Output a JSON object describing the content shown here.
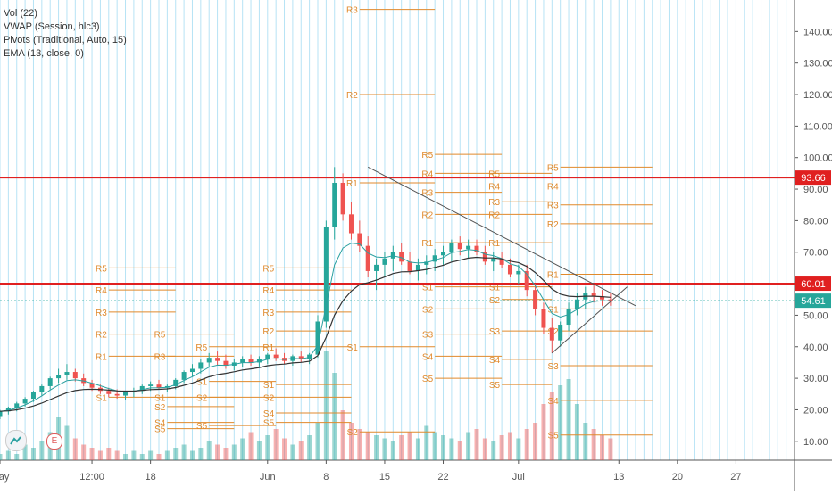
{
  "legend": [
    "Vol (22)",
    "VWAP (Session, hlc3)",
    "Pivots (Traditional, Auto, 15)",
    "EMA (13, close, 0)"
  ],
  "chart_data": {
    "type": "candlestick",
    "x_tick_labels": [
      "May",
      "12:00",
      "18",
      "Jun",
      "8",
      "15",
      "22",
      "Jul",
      "13",
      "20",
      "27"
    ],
    "x_ticks": [
      {
        "label": "May",
        "day": 0
      },
      {
        "label": "12:00",
        "day": 11
      },
      {
        "label": "18",
        "day": 18
      },
      {
        "label": "Jun",
        "day": 32
      },
      {
        "label": "8",
        "day": 39
      },
      {
        "label": "15",
        "day": 46
      },
      {
        "label": "22",
        "day": 53
      },
      {
        "label": "Jul",
        "day": 62
      },
      {
        "label": "13",
        "day": 74
      },
      {
        "label": "20",
        "day": 81
      },
      {
        "label": "27",
        "day": 88
      }
    ],
    "y_ticks": [
      10,
      20,
      30,
      40,
      50,
      60,
      70,
      80,
      90,
      100,
      110,
      120,
      130,
      140
    ],
    "ylim": [
      4,
      150
    ],
    "xlim": [
      0,
      95
    ],
    "horizontal_lines": [
      {
        "value": 93.66,
        "label": "93.66",
        "color": "#e02020"
      },
      {
        "value": 60.01,
        "label": "60.01",
        "color": "#e02020"
      }
    ],
    "last_price": {
      "value": 54.61,
      "label": "54.61",
      "color": "#26a69a"
    },
    "trendlines": [
      {
        "from": [
          44,
          97
        ],
        "to": [
          76,
          53
        ],
        "color": "#555555"
      },
      {
        "from": [
          66,
          38
        ],
        "to": [
          75,
          59
        ],
        "color": "#555555"
      }
    ],
    "candles": [
      [
        0,
        18,
        20,
        17,
        19.5
      ],
      [
        1,
        19.5,
        21,
        18.5,
        20.5
      ],
      [
        2,
        20.5,
        22.5,
        19.5,
        22
      ],
      [
        3,
        22,
        24,
        21,
        23.5
      ],
      [
        4,
        23.5,
        26,
        22.5,
        25.5
      ],
      [
        5,
        25.5,
        28,
        24.5,
        27.5
      ],
      [
        6,
        27.5,
        30.5,
        26.5,
        30
      ],
      [
        7,
        30,
        33,
        28.5,
        31
      ],
      [
        8,
        31,
        34.5,
        29.5,
        32
      ],
      [
        9,
        32,
        33,
        29,
        30
      ],
      [
        10,
        30,
        31.5,
        27.5,
        28.5
      ],
      [
        11,
        28.5,
        29.5,
        26,
        27
      ],
      [
        12,
        27,
        28,
        25,
        26
      ],
      [
        13,
        26,
        27,
        24,
        25
      ],
      [
        14,
        25,
        26.5,
        23.5,
        24.5
      ],
      [
        15,
        24.5,
        26,
        23,
        25.5
      ],
      [
        16,
        25.5,
        27,
        24,
        26
      ],
      [
        17,
        26,
        28,
        25,
        27.5
      ],
      [
        18,
        27.5,
        29,
        26,
        28
      ],
      [
        19,
        28,
        29.5,
        26.5,
        27
      ],
      [
        20,
        27,
        28,
        25.5,
        27.5
      ],
      [
        21,
        27.5,
        30,
        26.5,
        29.5
      ],
      [
        22,
        29.5,
        32.5,
        28.5,
        32
      ],
      [
        23,
        32,
        34.5,
        30.5,
        33
      ],
      [
        24,
        33,
        36,
        31.5,
        35
      ],
      [
        25,
        35,
        38,
        33.5,
        36.5
      ],
      [
        26,
        36.5,
        38.5,
        34,
        35.5
      ],
      [
        27,
        35.5,
        37.5,
        33,
        34
      ],
      [
        28,
        34,
        36,
        32.5,
        35
      ],
      [
        29,
        35,
        37,
        33.5,
        36
      ],
      [
        30,
        36,
        37.5,
        34,
        35
      ],
      [
        31,
        35,
        37,
        33.5,
        36
      ],
      [
        32,
        36,
        38,
        34.5,
        37.5
      ],
      [
        33,
        37.5,
        39.5,
        35.5,
        36.5
      ],
      [
        34,
        36.5,
        38,
        34.5,
        35.5
      ],
      [
        35,
        35.5,
        37.5,
        34,
        37
      ],
      [
        36,
        37,
        38.5,
        35,
        36
      ],
      [
        37,
        36,
        38,
        34.5,
        37.5
      ],
      [
        38,
        37.5,
        50,
        36.5,
        48
      ],
      [
        39,
        48,
        80,
        46,
        78
      ],
      [
        40,
        78,
        97,
        74,
        92
      ],
      [
        41,
        92,
        95,
        80,
        82
      ],
      [
        42,
        82,
        86,
        74,
        76
      ],
      [
        43,
        76,
        80,
        70,
        72
      ],
      [
        44,
        72,
        75,
        62,
        64
      ],
      [
        45,
        64,
        68,
        58,
        66
      ],
      [
        46,
        66,
        70,
        62,
        68
      ],
      [
        47,
        68,
        72,
        64,
        70
      ],
      [
        48,
        70,
        73,
        66,
        67
      ],
      [
        49,
        67,
        70,
        63,
        64
      ],
      [
        50,
        64,
        68,
        61,
        66
      ],
      [
        51,
        66,
        69,
        63,
        67
      ],
      [
        52,
        67,
        71,
        64,
        69
      ],
      [
        53,
        69,
        72,
        66,
        70
      ],
      [
        54,
        70,
        74,
        67,
        73
      ],
      [
        55,
        73,
        75,
        69,
        71
      ],
      [
        56,
        71,
        74,
        68,
        72
      ],
      [
        57,
        72,
        74,
        69,
        70
      ],
      [
        58,
        70,
        72,
        66,
        67
      ],
      [
        59,
        67,
        70,
        64,
        68
      ],
      [
        60,
        68,
        70,
        65,
        66
      ],
      [
        61,
        66,
        68,
        62,
        63
      ],
      [
        62,
        63,
        66,
        60,
        64
      ],
      [
        63,
        64,
        66,
        56,
        58
      ],
      [
        64,
        58,
        60,
        50,
        52
      ],
      [
        65,
        52,
        54,
        44,
        46
      ],
      [
        66,
        46,
        49,
        38,
        42
      ],
      [
        67,
        42,
        48,
        40,
        47
      ],
      [
        68,
        47,
        54,
        45,
        52
      ],
      [
        69,
        52,
        57,
        50,
        55
      ],
      [
        70,
        55,
        59,
        52,
        57
      ],
      [
        71,
        57,
        60,
        54,
        56
      ],
      [
        72,
        56,
        58,
        53,
        55
      ],
      [
        73,
        55,
        57,
        53,
        54.61
      ]
    ],
    "volume": [
      [
        0,
        2
      ],
      [
        1,
        3
      ],
      [
        2,
        2
      ],
      [
        3,
        5
      ],
      [
        4,
        4
      ],
      [
        5,
        6
      ],
      [
        6,
        9
      ],
      [
        7,
        14
      ],
      [
        8,
        11
      ],
      [
        9,
        7
      ],
      [
        10,
        5
      ],
      [
        11,
        4
      ],
      [
        12,
        3
      ],
      [
        13,
        4
      ],
      [
        14,
        3
      ],
      [
        15,
        2
      ],
      [
        16,
        3
      ],
      [
        17,
        2
      ],
      [
        18,
        3
      ],
      [
        19,
        2
      ],
      [
        20,
        3
      ],
      [
        21,
        4
      ],
      [
        22,
        5
      ],
      [
        23,
        3
      ],
      [
        24,
        4
      ],
      [
        25,
        6
      ],
      [
        26,
        5
      ],
      [
        27,
        4
      ],
      [
        28,
        5
      ],
      [
        29,
        7
      ],
      [
        30,
        9
      ],
      [
        31,
        6
      ],
      [
        32,
        8
      ],
      [
        33,
        10
      ],
      [
        34,
        7
      ],
      [
        35,
        5
      ],
      [
        36,
        6
      ],
      [
        37,
        8
      ],
      [
        38,
        12
      ],
      [
        39,
        35
      ],
      [
        40,
        28
      ],
      [
        41,
        16
      ],
      [
        42,
        12
      ],
      [
        43,
        10
      ],
      [
        44,
        9
      ],
      [
        45,
        8
      ],
      [
        46,
        7
      ],
      [
        47,
        6
      ],
      [
        48,
        8
      ],
      [
        49,
        9
      ],
      [
        50,
        7
      ],
      [
        51,
        11
      ],
      [
        52,
        9
      ],
      [
        53,
        8
      ],
      [
        54,
        7
      ],
      [
        55,
        6
      ],
      [
        56,
        9
      ],
      [
        57,
        10
      ],
      [
        58,
        7
      ],
      [
        59,
        6
      ],
      [
        60,
        8
      ],
      [
        61,
        9
      ],
      [
        62,
        7
      ],
      [
        63,
        10
      ],
      [
        64,
        12
      ],
      [
        65,
        18
      ],
      [
        66,
        22
      ],
      [
        67,
        24
      ],
      [
        68,
        26
      ],
      [
        69,
        18
      ],
      [
        70,
        12
      ],
      [
        71,
        10
      ],
      [
        72,
        8
      ],
      [
        73,
        7
      ]
    ],
    "pivot_levels": [
      {
        "label": "R5",
        "value": 65,
        "x0": 13,
        "x1": 21
      },
      {
        "label": "R4",
        "value": 58,
        "x0": 13,
        "x1": 21
      },
      {
        "label": "R3",
        "value": 51,
        "x0": 13,
        "x1": 21
      },
      {
        "label": "R2",
        "value": 44,
        "x0": 13,
        "x1": 21
      },
      {
        "label": "R1",
        "value": 37,
        "x0": 13,
        "x1": 21
      },
      {
        "label": "S1",
        "value": 24,
        "x0": 13,
        "x1": 21
      },
      {
        "label": "R5",
        "value": 44,
        "x0": 20,
        "x1": 28
      },
      {
        "label": "R3",
        "value": 37,
        "x0": 20,
        "x1": 28
      },
      {
        "label": "S1",
        "value": 24,
        "x0": 20,
        "x1": 28
      },
      {
        "label": "S2",
        "value": 21,
        "x0": 20,
        "x1": 28
      },
      {
        "label": "S4",
        "value": 16,
        "x0": 20,
        "x1": 28
      },
      {
        "label": "S5",
        "value": 14,
        "x0": 20,
        "x1": 28
      },
      {
        "label": "R5",
        "value": 40,
        "x0": 25,
        "x1": 33
      },
      {
        "label": "S1",
        "value": 29,
        "x0": 25,
        "x1": 33
      },
      {
        "label": "S2",
        "value": 24,
        "x0": 25,
        "x1": 33
      },
      {
        "label": "S5",
        "value": 15,
        "x0": 25,
        "x1": 33
      },
      {
        "label": "R5",
        "value": 65,
        "x0": 33,
        "x1": 42
      },
      {
        "label": "R4",
        "value": 58,
        "x0": 33,
        "x1": 42
      },
      {
        "label": "R3",
        "value": 51,
        "x0": 33,
        "x1": 42
      },
      {
        "label": "R2",
        "value": 45,
        "x0": 33,
        "x1": 42
      },
      {
        "label": "R1",
        "value": 40,
        "x0": 33,
        "x1": 42
      },
      {
        "label": "S1",
        "value": 28,
        "x0": 33,
        "x1": 42
      },
      {
        "label": "S2",
        "value": 24,
        "x0": 33,
        "x1": 42
      },
      {
        "label": "S4",
        "value": 19,
        "x0": 33,
        "x1": 42
      },
      {
        "label": "S5",
        "value": 16,
        "x0": 33,
        "x1": 42
      },
      {
        "label": "R3",
        "value": 147,
        "x0": 43,
        "x1": 52
      },
      {
        "label": "R2",
        "value": 120,
        "x0": 43,
        "x1": 52
      },
      {
        "label": "R1",
        "value": 92,
        "x0": 43,
        "x1": 52
      },
      {
        "label": "S1",
        "value": 40,
        "x0": 43,
        "x1": 52
      },
      {
        "label": "S2",
        "value": 13,
        "x0": 43,
        "x1": 52
      },
      {
        "label": "R5",
        "value": 101,
        "x0": 52,
        "x1": 60
      },
      {
        "label": "R4",
        "value": 95,
        "x0": 52,
        "x1": 60
      },
      {
        "label": "R3",
        "value": 89,
        "x0": 52,
        "x1": 60
      },
      {
        "label": "R2",
        "value": 82,
        "x0": 52,
        "x1": 60
      },
      {
        "label": "R1",
        "value": 73,
        "x0": 52,
        "x1": 60
      },
      {
        "label": "S1",
        "value": 59,
        "x0": 52,
        "x1": 60
      },
      {
        "label": "S2",
        "value": 52,
        "x0": 52,
        "x1": 60
      },
      {
        "label": "S3",
        "value": 44,
        "x0": 52,
        "x1": 60
      },
      {
        "label": "S4",
        "value": 37,
        "x0": 52,
        "x1": 60
      },
      {
        "label": "S5",
        "value": 30,
        "x0": 52,
        "x1": 60
      },
      {
        "label": "R5",
        "value": 95,
        "x0": 60,
        "x1": 66
      },
      {
        "label": "R4",
        "value": 91,
        "x0": 60,
        "x1": 66
      },
      {
        "label": "R3",
        "value": 86,
        "x0": 60,
        "x1": 66
      },
      {
        "label": "R2",
        "value": 82,
        "x0": 60,
        "x1": 66
      },
      {
        "label": "R1",
        "value": 73,
        "x0": 60,
        "x1": 66
      },
      {
        "label": "S1",
        "value": 59,
        "x0": 60,
        "x1": 66
      },
      {
        "label": "S2",
        "value": 55,
        "x0": 60,
        "x1": 66
      },
      {
        "label": "S3",
        "value": 45,
        "x0": 60,
        "x1": 66
      },
      {
        "label": "S4",
        "value": 36,
        "x0": 60,
        "x1": 66
      },
      {
        "label": "S5",
        "value": 28,
        "x0": 60,
        "x1": 66
      },
      {
        "label": "R5",
        "value": 97,
        "x0": 67,
        "x1": 78
      },
      {
        "label": "R4",
        "value": 91,
        "x0": 67,
        "x1": 78
      },
      {
        "label": "R3",
        "value": 85,
        "x0": 67,
        "x1": 78
      },
      {
        "label": "R2",
        "value": 79,
        "x0": 67,
        "x1": 78
      },
      {
        "label": "R1",
        "value": 63,
        "x0": 67,
        "x1": 78
      },
      {
        "label": "S1",
        "value": 52,
        "x0": 67,
        "x1": 78
      },
      {
        "label": "S2",
        "value": 45,
        "x0": 67,
        "x1": 78
      },
      {
        "label": "S3",
        "value": 34,
        "x0": 67,
        "x1": 78
      },
      {
        "label": "S4",
        "value": 23,
        "x0": 67,
        "x1": 78
      },
      {
        "label": "S5",
        "value": 12,
        "x0": 67,
        "x1": 78
      }
    ]
  },
  "colors": {
    "up": "#26a69a",
    "down": "#ef5350",
    "pivot": "#e08a2c",
    "ema": "#333333",
    "vwap": "#2aa0a0",
    "grid": "#b7e3f5",
    "axis_text": "#555555"
  }
}
